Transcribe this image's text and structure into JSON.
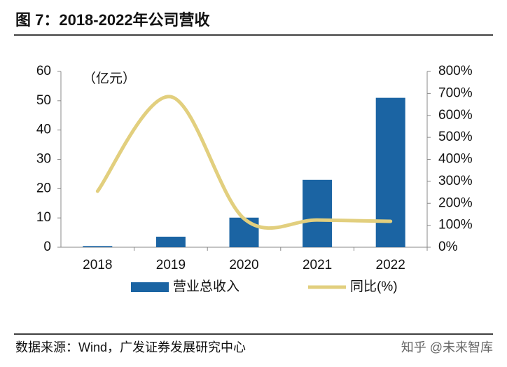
{
  "title": "图 7：2018-2022年公司营收",
  "source": "数据来源：Wind，广发证券发展研究中心",
  "watermark": "知乎 @未来智库",
  "chart_data": {
    "type": "combo",
    "unit_label": "（亿元）",
    "categories": [
      "2018",
      "2019",
      "2020",
      "2021",
      "2022"
    ],
    "series": [
      {
        "name": "营业总收入",
        "type": "bar",
        "color": "#1b64a3",
        "values": [
          0.4,
          3.6,
          10.1,
          23,
          51
        ]
      },
      {
        "name": "同比(%)",
        "type": "line",
        "axis": "y2",
        "color": "#e2cf7e",
        "values": [
          255,
          685,
          130,
          124,
          118
        ]
      }
    ],
    "ylim": [
      0,
      60
    ],
    "yticks": [
      0,
      10,
      20,
      30,
      40,
      50,
      60
    ],
    "y2lim": [
      0,
      800
    ],
    "y2ticks": [
      {
        "value": 0,
        "label": "0%"
      },
      {
        "value": 100,
        "label": "100%"
      },
      {
        "value": 200,
        "label": "200%"
      },
      {
        "value": 300,
        "label": "300%"
      },
      {
        "value": 400,
        "label": "400%"
      },
      {
        "value": 500,
        "label": "500%"
      },
      {
        "value": 600,
        "label": "600%"
      },
      {
        "value": 700,
        "label": "700%"
      },
      {
        "value": 800,
        "label": "800%"
      }
    ]
  }
}
